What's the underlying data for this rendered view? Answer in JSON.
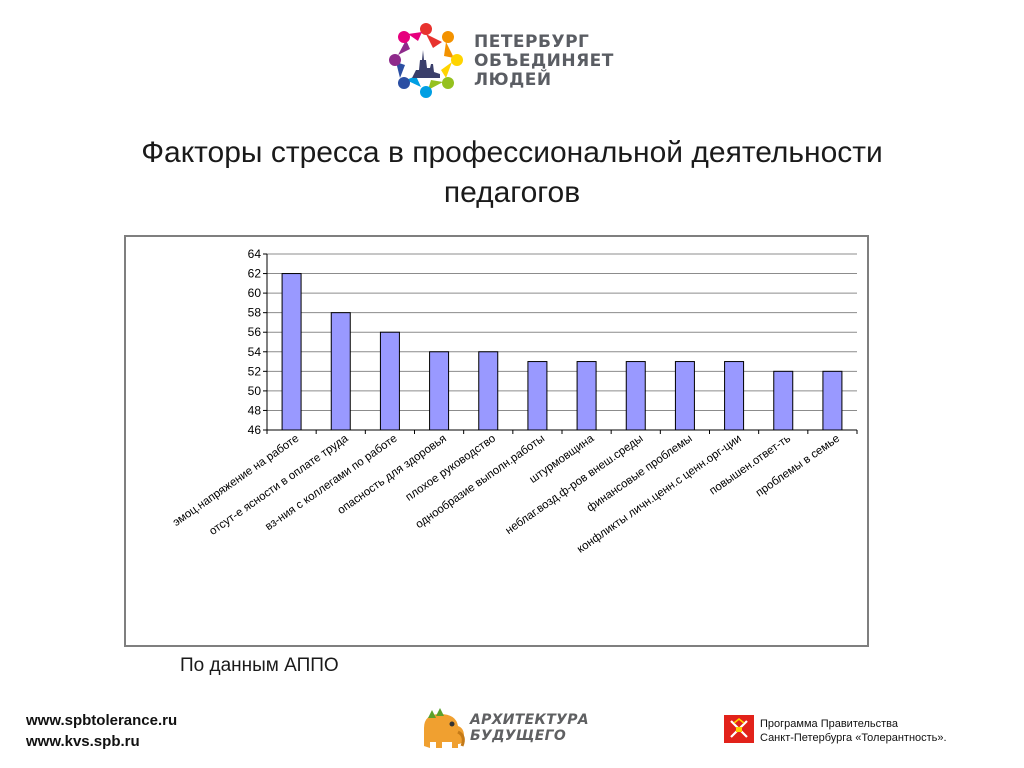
{
  "header": {
    "logo_lines": [
      "ПЕТЕРБУРГ",
      "ОБЪЕДИНЯЕТ",
      "ЛЮДЕЙ"
    ]
  },
  "slide": {
    "title_line1": "Факторы стресса в профессиональной деятельности",
    "title_line2": "педагогов",
    "source_note": "По данным АППО"
  },
  "chart_data": {
    "type": "bar",
    "title": "",
    "xlabel": "",
    "ylabel": "",
    "ylim": [
      46,
      64
    ],
    "yticks": [
      46,
      48,
      50,
      52,
      54,
      56,
      58,
      60,
      62,
      64
    ],
    "grid": true,
    "legend": "none",
    "bar_color": "#9999ff",
    "bar_outline": "#000000",
    "categories": [
      "эмоц.напряжение на работе",
      "отсут-е ясности в оплате труда",
      "вз-ния с коллегами по работе",
      "опасность для здоровья",
      "плохое руководство",
      "однообразие выполн.работы",
      "штурмовщина",
      "неблаг.возд.ф-ров внеш.среды",
      "финансовые проблемы",
      "конфликты личн.ценн.с ценн.орг-ции",
      "повышен.ответ-ть",
      "проблемы в семье"
    ],
    "values": [
      62,
      58,
      56,
      54,
      54,
      53,
      53,
      53,
      53,
      53,
      52,
      52
    ]
  },
  "footer": {
    "links": [
      "www.spbtolerance.ru",
      "www.kvs.spb.ru"
    ],
    "center_logo_lines": [
      "АРХИТЕКТУРА",
      "БУДУЩЕГО"
    ],
    "right_text_lines": [
      "Программа Правительства",
      "Санкт-Петербурга «Толерантность»."
    ]
  }
}
